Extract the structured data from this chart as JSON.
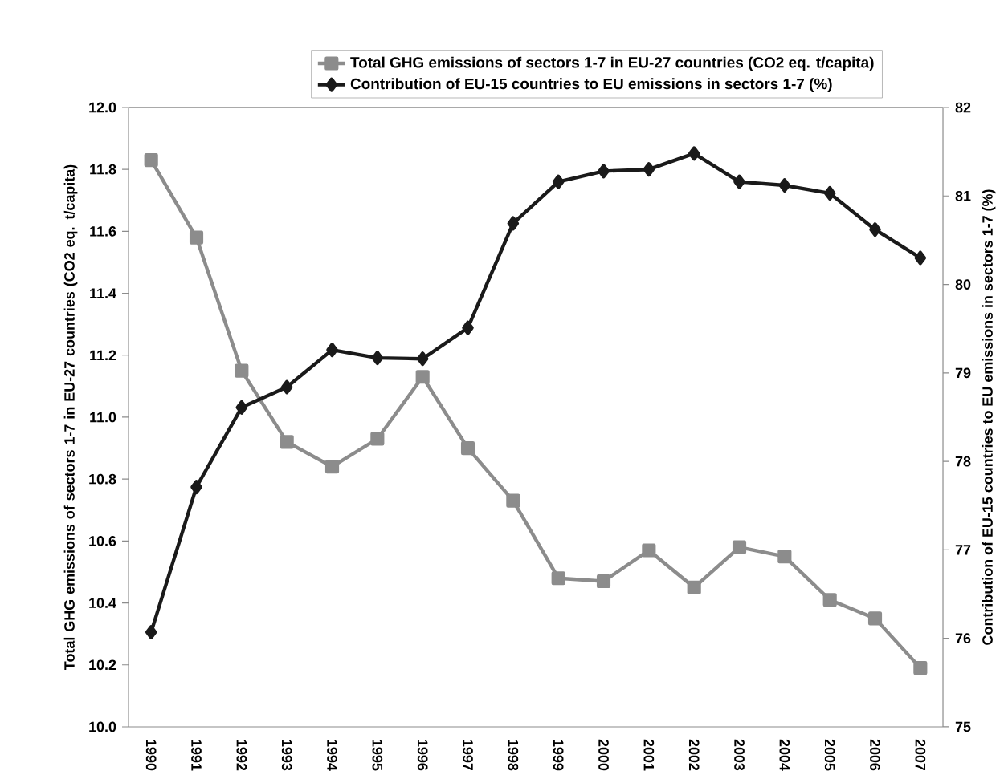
{
  "chart_data": {
    "type": "line",
    "ylabel": "Total GHG emissions of sectors 1-7 in EU-27 countries (CO2 eq. t/capita)",
    "y2label": "Contribution of EU-15 countries to EU emissions in sectors 1-7 (%)",
    "categories": [
      "1990",
      "1991",
      "1992",
      "1993",
      "1994",
      "1995",
      "1996",
      "1997",
      "1998",
      "1999",
      "2000",
      "2001",
      "2002",
      "2003",
      "2004",
      "2005",
      "2006",
      "2007"
    ],
    "series": [
      {
        "name": "Total GHG emissions of sectors 1-7 in EU-27 countries (CO2 eq. t/capita)",
        "color": "#8c8c8c",
        "marker": "square",
        "values": [
          11.83,
          11.58,
          11.15,
          10.92,
          10.84,
          10.93,
          11.13,
          10.9,
          10.73,
          10.48,
          10.47,
          10.57,
          10.45,
          10.58,
          10.55,
          10.41,
          10.35,
          10.19
        ]
      },
      {
        "name": "Contribution of EU-15 countries to EU emissions in sectors 1-7 (%)",
        "color": "#1a1a1a",
        "marker": "diamond",
        "axis": "y2",
        "values": [
          76.07,
          77.71,
          78.61,
          78.84,
          79.26,
          79.17,
          79.16,
          79.51,
          80.69,
          81.16,
          81.28,
          81.3,
          81.48,
          81.16,
          81.12,
          81.03,
          80.62,
          80.3
        ]
      }
    ],
    "ylim": [
      10.0,
      12.0
    ],
    "yticks": [
      {
        "value": 10.0,
        "label": "10.0"
      },
      {
        "value": 10.2,
        "label": "10.2"
      },
      {
        "value": 10.4,
        "label": "10.4"
      },
      {
        "value": 10.6,
        "label": "10.6"
      },
      {
        "value": 10.8,
        "label": "10.8"
      },
      {
        "value": 11.0,
        "label": "11.0"
      },
      {
        "value": 11.2,
        "label": "11.2"
      },
      {
        "value": 11.4,
        "label": "11.4"
      },
      {
        "value": 11.6,
        "label": "11.6"
      },
      {
        "value": 11.8,
        "label": "11.8"
      },
      {
        "value": 12.0,
        "label": "12.0"
      }
    ],
    "y2lim": [
      75,
      82
    ],
    "y2ticks": [
      75,
      76,
      77,
      78,
      79,
      80,
      81,
      82
    ],
    "legend": "top",
    "grid": false
  }
}
